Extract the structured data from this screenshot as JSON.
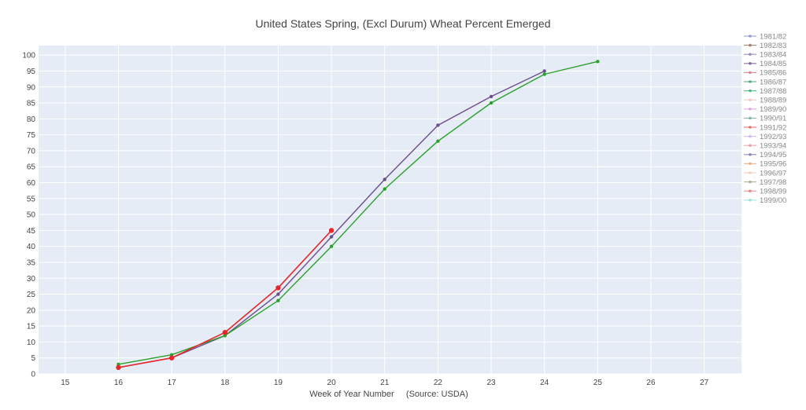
{
  "chart_data": {
    "type": "line",
    "title": "United States Spring, (Excl Durum) Wheat Percent Emerged",
    "xlabel": "Week of Year Number     (Source: USDA)",
    "ylabel": "",
    "xlim": [
      14.5,
      27.7
    ],
    "ylim": [
      0,
      103
    ],
    "x_ticks": [
      15,
      16,
      17,
      18,
      19,
      20,
      21,
      22,
      23,
      24,
      25,
      26,
      27
    ],
    "y_ticks": [
      0,
      5,
      10,
      15,
      20,
      25,
      30,
      35,
      40,
      45,
      50,
      55,
      60,
      65,
      70,
      75,
      80,
      85,
      90,
      95,
      100
    ],
    "grid": true,
    "legend_position": "right",
    "legend_entries": [
      {
        "name": "1981/82",
        "color": "#7b8bd0"
      },
      {
        "name": "1982/83",
        "color": "#8c6d57"
      },
      {
        "name": "1983/84",
        "color": "#8a76b0"
      },
      {
        "name": "1984/85",
        "color": "#6b4e8a"
      },
      {
        "name": "1985/86",
        "color": "#d07080"
      },
      {
        "name": "1986/87",
        "color": "#3f9a6a"
      },
      {
        "name": "1987/88",
        "color": "#2fae6c"
      },
      {
        "name": "1988/89",
        "color": "#f0c0b8"
      },
      {
        "name": "1989/90",
        "color": "#d79ad6"
      },
      {
        "name": "1990/91",
        "color": "#6aa89a"
      },
      {
        "name": "1991/92",
        "color": "#e05a5a"
      },
      {
        "name": "1992/93",
        "color": "#c8b0e8"
      },
      {
        "name": "1993/94",
        "color": "#e890a0"
      },
      {
        "name": "1994/95",
        "color": "#7a6fa0"
      },
      {
        "name": "1995/96",
        "color": "#e8a070"
      },
      {
        "name": "1996/97",
        "color": "#e8c8b0"
      },
      {
        "name": "1997/98",
        "color": "#a0a080"
      },
      {
        "name": "1998/99",
        "color": "#e07878"
      },
      {
        "name": "1999/00",
        "color": "#80e0d8"
      }
    ],
    "series": [
      {
        "color": "#6b4e8a",
        "marker": "small",
        "x": [
          16,
          17,
          18,
          19,
          20,
          21,
          22,
          23,
          24
        ],
        "values": [
          2,
          5,
          12,
          25,
          43,
          61,
          78,
          87,
          95
        ]
      },
      {
        "color": "#2ca02c",
        "marker": "small",
        "x": [
          16,
          17,
          18,
          19,
          20,
          21,
          22,
          23,
          24,
          25
        ],
        "values": [
          3,
          6,
          12,
          23,
          40,
          58,
          73,
          85,
          94,
          98
        ]
      },
      {
        "color": "#e8262a",
        "marker": "large",
        "x": [
          16,
          17,
          18,
          19,
          20
        ],
        "values": [
          2,
          5,
          13,
          27,
          45
        ]
      }
    ]
  }
}
